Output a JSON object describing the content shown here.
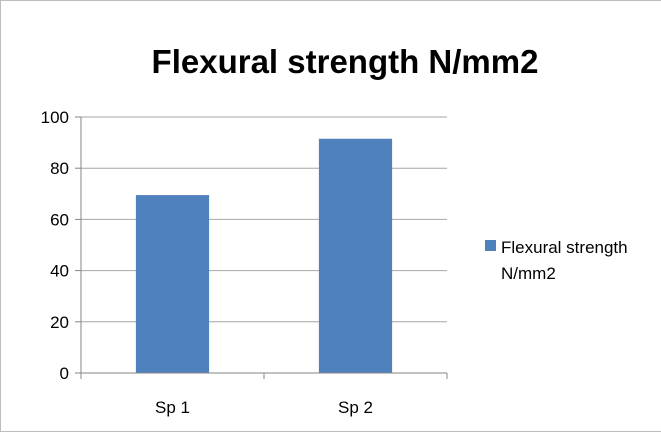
{
  "chart_data": {
    "type": "bar",
    "title": "Flexural strength N/mm2",
    "categories": [
      "Sp 1",
      "Sp 2"
    ],
    "series": [
      {
        "name": "Flexural strength N/mm2",
        "values": [
          69.5,
          91.5
        ],
        "color": "#4f81bd"
      }
    ],
    "ylim": [
      0,
      100
    ],
    "yticks": [
      "0",
      "20",
      "40",
      "60",
      "80",
      "100"
    ],
    "xlabel": "",
    "ylabel": "",
    "grid": true,
    "gridline_color": "#a6a6a6",
    "legend_position": "right",
    "legend_lines": [
      "Flexural strength",
      "N/mm2"
    ]
  }
}
